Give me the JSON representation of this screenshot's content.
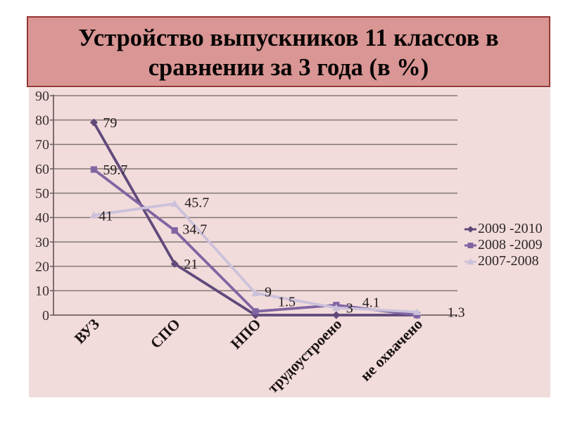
{
  "slide": {
    "title": "Устройство выпускников 11 классов в\nсравнении за 3 года (в %)",
    "banner": {
      "fill_color": "#d99694",
      "border_color": "#953735",
      "text_color": "#070404"
    },
    "background_color": "#ffffff"
  },
  "chart_data": {
    "type": "line",
    "title": "",
    "xlabel": "",
    "ylabel": "",
    "categories": [
      "ВУЗ",
      "СПО",
      "НПО",
      "трудоустроено",
      "не охвачено"
    ],
    "series": [
      {
        "name": "2009 -2010",
        "color": "#604a7b",
        "marker": "diamond",
        "values": [
          79,
          21,
          0,
          0,
          0
        ],
        "data_labels": [
          "79",
          "21",
          null,
          null,
          null
        ]
      },
      {
        "name": "2008 -2009",
        "color": "#8064a2",
        "marker": "square",
        "values": [
          59.7,
          34.7,
          1.5,
          4.1,
          0
        ],
        "data_labels": [
          "59.7",
          "34.7",
          "1.5",
          "4.1",
          null
        ]
      },
      {
        "name": "2007-2008",
        "color": "#ccc1da",
        "marker": "triangle",
        "values": [
          41,
          45.7,
          9,
          3,
          1.3
        ],
        "data_labels": [
          "41",
          "45.7",
          "9",
          "3",
          "1.3"
        ]
      }
    ],
    "y_axis": {
      "min": 0,
      "max": 90,
      "step": 10,
      "tick_labels": [
        "0",
        "10",
        "20",
        "30",
        "40",
        "50",
        "60",
        "70",
        "80",
        "90"
      ]
    },
    "grid": "horizontal",
    "legend_position": "right",
    "plot_style": {
      "background_color": "#f2dcdb",
      "gridline_color": "#837678",
      "axis_color": "#6e6163",
      "tick_label_color": "#3a3132",
      "category_label_color": "#181111",
      "data_label_color": "#211b1b"
    }
  }
}
